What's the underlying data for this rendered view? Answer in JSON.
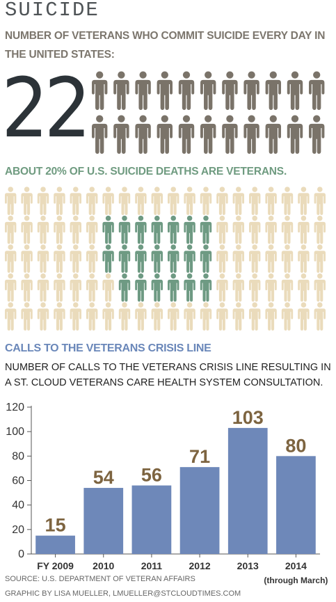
{
  "title": "SUICIDE",
  "veterans_per_day": {
    "heading": "NUMBER OF VETERANS WHO COMMIT SUICIDE EVERY DAY IN THE UNITED STATES:",
    "number": "22",
    "icon": "person-icon",
    "icon_count": 22,
    "icon_color": "#7a7369"
  },
  "percentage": {
    "heading": "ABOUT 20% OF U.S. SUICIDE DEATHS ARE VETERANS.",
    "icon": "person-icon",
    "grid_columns": 20,
    "grid_rows": 5,
    "highlighted_count": 20,
    "base_color": "#eadbbb",
    "highlight_color": "#6e9a83"
  },
  "calls": {
    "heading": "CALLS TO THE VETERANS CRISIS LINE",
    "subheading": "NUMBER OF CALLS TO THE VETERANS CRISIS LINE RESULTING IN A ST. CLOUD VETERANS CARE HEALTH SYSTEM CONSULTATION."
  },
  "chart_data": {
    "type": "bar",
    "categories": [
      "FY 2009",
      "2010",
      "2011",
      "2012",
      "2013",
      "2014"
    ],
    "values": [
      15,
      54,
      56,
      71,
      103,
      80
    ],
    "category_note": "(through March)",
    "ylim": [
      0,
      120
    ],
    "yticks": [
      0,
      20,
      40,
      60,
      80,
      100,
      120
    ],
    "bar_color": "#6e88b9",
    "label_color": "#7d6440",
    "grid": false
  },
  "source": "SOURCE: U.S. DEPARTMENT OF VETERAN AFFAIRS",
  "credit": "GRAPHIC BY LISA MUELLER, LMUELLER@STCLOUDTIMES.COM"
}
